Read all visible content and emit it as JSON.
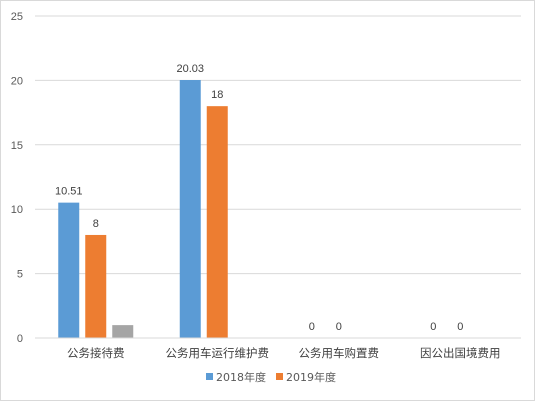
{
  "chart_data": {
    "type": "bar",
    "categories": [
      "公务接待费",
      "公务用车运行维护费",
      "公务用车购置费",
      "因公出国境费用"
    ],
    "series": [
      {
        "name": "2018年度",
        "values": [
          10.51,
          20.03,
          0,
          0
        ],
        "color": "#5b9bd5",
        "data_labels": [
          "10.51",
          "20.03",
          "0",
          "0"
        ]
      },
      {
        "name": "2019年度",
        "values": [
          8,
          18,
          0,
          0
        ],
        "color": "#ed7d31",
        "data_labels": [
          "8",
          "18",
          "0",
          "0"
        ]
      },
      {
        "values": [
          1,
          null,
          null,
          null
        ],
        "color": "#a5a5a5",
        "data_labels": [
          "",
          "",
          "",
          ""
        ]
      }
    ],
    "title": "",
    "xlabel": "",
    "ylabel": "",
    "ylim": [
      0,
      25
    ],
    "yticks": [
      0,
      5,
      10,
      15,
      20,
      25
    ],
    "grid": true,
    "legend": "bottom"
  }
}
